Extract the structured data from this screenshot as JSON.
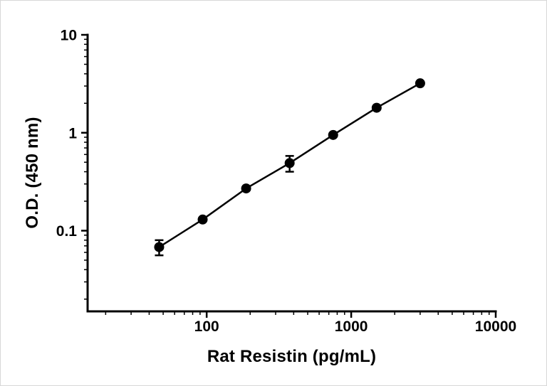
{
  "page": {
    "background": "#ffffff",
    "border_color": "#d8d8d8",
    "accent": "#000000"
  },
  "chart_data": {
    "type": "line",
    "title": "",
    "xlabel": "Rat Resistin (pg/mL)",
    "ylabel": "O.D. (450 nm)",
    "x_scale": "log",
    "y_scale": "log",
    "xlim": [
      15,
      10000
    ],
    "ylim": [
      0.015,
      10
    ],
    "x_major_ticks": [
      100,
      1000,
      10000
    ],
    "x_tick_labels": [
      "100",
      "1000",
      "10000"
    ],
    "y_major_ticks": [
      0.1,
      1,
      10
    ],
    "y_tick_labels": [
      "0.1",
      "1",
      "10"
    ],
    "grid": false,
    "legend": null,
    "marker": {
      "shape": "circle",
      "size": 7,
      "color": "#000000"
    },
    "line": {
      "color": "#000000",
      "width": 2.5
    },
    "error_bars": {
      "cap_half_width": 6,
      "stroke_width": 2.5
    },
    "points": [
      {
        "x": 46.9,
        "y": 0.068,
        "err": 0.012
      },
      {
        "x": 93.8,
        "y": 0.13,
        "err": 0.005
      },
      {
        "x": 187.5,
        "y": 0.27,
        "err": 0.008
      },
      {
        "x": 375,
        "y": 0.49,
        "err": 0.09
      },
      {
        "x": 750,
        "y": 0.95,
        "err": 0.02
      },
      {
        "x": 1500,
        "y": 1.8,
        "err": 0.03
      },
      {
        "x": 3000,
        "y": 3.2,
        "err": 0.05
      }
    ]
  }
}
